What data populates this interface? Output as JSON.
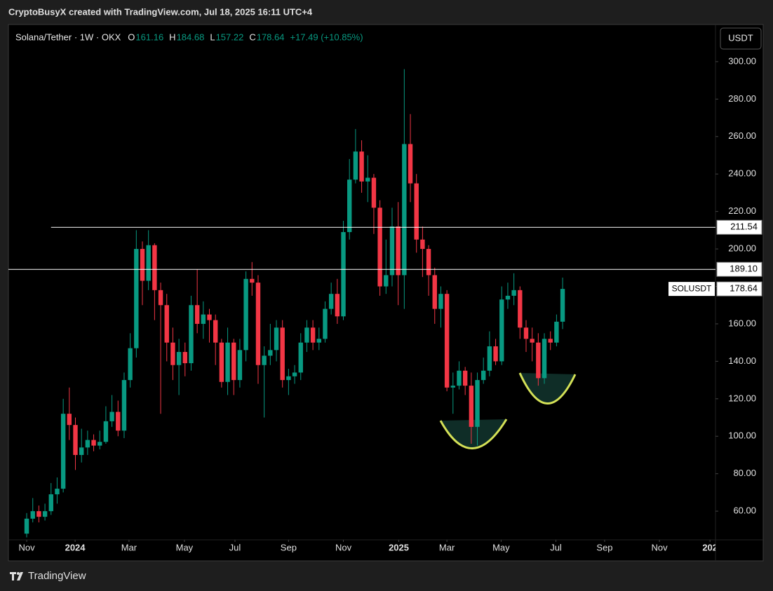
{
  "header": {
    "credit": "CryptoBusyX created with TradingView.com, Jul 18, 2025 16:11 UTC+4",
    "brand": "TradingView"
  },
  "chart_data": {
    "type": "candlestick",
    "title": "Solana/Tether · 1W · OKX",
    "ohlc_legend": [
      {
        "label": "O",
        "value": 161.16
      },
      {
        "label": "H",
        "value": 184.68
      },
      {
        "label": "L",
        "value": 157.22
      },
      {
        "label": "C",
        "value": 178.64
      }
    ],
    "change": "+17.49 (+10.85%)",
    "currency": "USDT",
    "up_color": "#089981",
    "down_color": "#f23645",
    "xlim": [
      -3,
      113.1
    ],
    "xticks": [
      {
        "value": 0,
        "label": "Nov"
      },
      {
        "value": 7.95,
        "label": "2024"
      },
      {
        "value": 16.8,
        "label": "Mar"
      },
      {
        "value": 25.9,
        "label": "May"
      },
      {
        "value": 34.2,
        "label": "Jul"
      },
      {
        "value": 43,
        "label": "Sep"
      },
      {
        "value": 52,
        "label": "Nov"
      },
      {
        "value": 61.1,
        "label": "2025"
      },
      {
        "value": 69,
        "label": "Mar"
      },
      {
        "value": 77.9,
        "label": "May"
      },
      {
        "value": 86.9,
        "label": "Jul"
      },
      {
        "value": 94.9,
        "label": "Sep"
      },
      {
        "value": 103.9,
        "label": "Nov"
      },
      {
        "value": 112.2,
        "label": "202"
      }
    ],
    "ylim": [
      44.7,
      319.8
    ],
    "yticks": [
      {
        "value": 60,
        "label": "60.00"
      },
      {
        "value": 80,
        "label": "80.00"
      },
      {
        "value": 100,
        "label": "100.00"
      },
      {
        "value": 120,
        "label": "120.00"
      },
      {
        "value": 140,
        "label": "140.00"
      },
      {
        "value": 160,
        "label": "160.00"
      },
      {
        "value": 180,
        "label": "180.00"
      },
      {
        "value": 200,
        "label": "200.00"
      },
      {
        "value": 220,
        "label": "220.00"
      },
      {
        "value": 240,
        "label": "240.00"
      },
      {
        "value": 260,
        "label": "260.00"
      },
      {
        "value": 280,
        "label": "280.00"
      },
      {
        "value": 300,
        "label": "300.00"
      }
    ],
    "open": [
      48,
      56,
      60,
      57,
      60,
      69,
      72,
      112,
      106,
      90,
      94,
      98,
      95,
      97,
      108,
      113,
      103,
      130,
      147,
      200,
      183,
      202,
      178,
      170,
      150,
      138,
      145,
      139,
      170,
      160,
      165,
      162,
      150,
      129,
      150,
      130,
      146,
      184,
      182,
      138,
      143,
      146,
      158,
      130,
      132,
      134,
      150,
      158,
      150,
      152,
      168,
      176,
      164,
      209,
      237,
      252,
      236,
      238,
      222,
      180,
      186,
      212,
      186,
      256,
      235,
      205,
      200,
      186,
      168,
      176,
      126,
      127,
      135,
      127,
      105,
      130,
      135,
      148,
      140,
      173,
      175,
      178,
      158,
      152,
      150,
      131,
      152,
      150,
      161.16
    ],
    "high": [
      59,
      67,
      63,
      64,
      75,
      78,
      120,
      126,
      110,
      104,
      103,
      101,
      103,
      116,
      122,
      119,
      134,
      155,
      210,
      204,
      210,
      203,
      182,
      176,
      158,
      152,
      150,
      175,
      189,
      172,
      168,
      165,
      152,
      158,
      152,
      152,
      188,
      193,
      186,
      148,
      160,
      162,
      162,
      136,
      138,
      155,
      162,
      162,
      158,
      172,
      182,
      184,
      215,
      248,
      264,
      258,
      250,
      240,
      226,
      205,
      222,
      225,
      296,
      272,
      240,
      212,
      202,
      190,
      180,
      178,
      134,
      140,
      137,
      134,
      134,
      142,
      156,
      152,
      180,
      182,
      187,
      180,
      162,
      158,
      155,
      155,
      156,
      165,
      184.68
    ],
    "low": [
      46,
      54,
      54,
      55,
      58,
      64,
      70,
      98,
      82,
      86,
      90,
      92,
      93,
      96,
      105,
      100,
      99,
      126,
      142,
      170,
      178,
      162,
      112,
      140,
      130,
      122,
      132,
      135,
      155,
      152,
      150,
      138,
      126,
      122,
      122,
      126,
      140,
      175,
      128,
      110,
      138,
      140,
      126,
      122,
      128,
      130,
      145,
      146,
      146,
      150,
      165,
      160,
      162,
      205,
      235,
      230,
      225,
      208,
      175,
      176,
      180,
      170,
      168,
      225,
      198,
      185,
      175,
      160,
      158,
      124,
      112,
      125,
      122,
      96,
      95,
      128,
      132,
      138,
      138,
      168,
      170,
      152,
      145,
      140,
      127,
      128,
      146,
      148,
      157.22
    ],
    "close": [
      56,
      60,
      57,
      60,
      69,
      72,
      112,
      106,
      90,
      94,
      98,
      95,
      97,
      108,
      113,
      103,
      130,
      147,
      200,
      183,
      202,
      178,
      170,
      150,
      138,
      145,
      139,
      170,
      160,
      165,
      162,
      150,
      129,
      150,
      130,
      146,
      184,
      182,
      138,
      143,
      146,
      158,
      130,
      132,
      134,
      150,
      158,
      150,
      152,
      168,
      176,
      164,
      209,
      237,
      252,
      236,
      238,
      222,
      180,
      186,
      212,
      186,
      256,
      235,
      205,
      200,
      186,
      168,
      176,
      126,
      127,
      135,
      127,
      105,
      130,
      135,
      148,
      140,
      173,
      175,
      178,
      158,
      152,
      150,
      131,
      152,
      150,
      161.16,
      178.64
    ],
    "hlines": [
      {
        "value": 211.54,
        "start_index": 4
      },
      {
        "value": 189.1,
        "label": "189.10"
      }
    ],
    "last_price_label": "SOLUSDT"
  }
}
